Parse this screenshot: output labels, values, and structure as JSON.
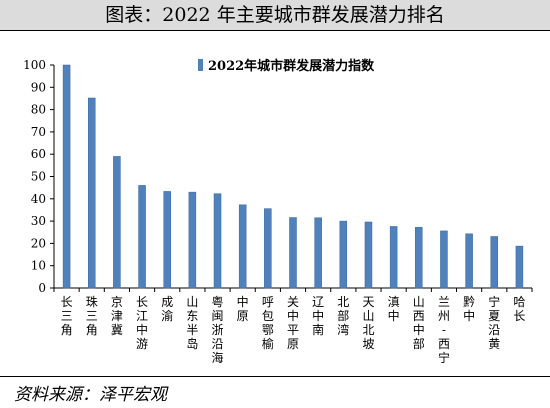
{
  "title": "图表：2022 年主要城市群发展潜力排名",
  "source": "资料来源：泽平宏观",
  "chart_data": {
    "type": "bar",
    "series": [
      {
        "name": "2022年城市群发展潜力指数",
        "color": "#4f81bd",
        "values": [
          100,
          85.2,
          59,
          46,
          43.3,
          43,
          42.3,
          37.3,
          35.6,
          31.6,
          31.5,
          30,
          29.6,
          27.6,
          27.2,
          25.6,
          24.3,
          23.1,
          18.8
        ]
      }
    ],
    "categories": [
      "长三角",
      "珠三角",
      "京津冀",
      "长江中游",
      "成渝",
      "山东半岛",
      "粤闽浙沿海",
      "中原",
      "呼包鄂榆",
      "关中平原",
      "辽中南",
      "北部湾",
      "天山北坡",
      "滇中",
      "山西中部",
      "兰州-西宁",
      "黔中",
      "宁夏沿黄",
      "哈长"
    ],
    "y_ticks": [
      "0",
      "10",
      "20",
      "30",
      "40",
      "50",
      "60",
      "70",
      "80",
      "90",
      "100"
    ],
    "ylim": [
      0,
      100
    ],
    "grid": false,
    "legend_position": "top-center"
  }
}
